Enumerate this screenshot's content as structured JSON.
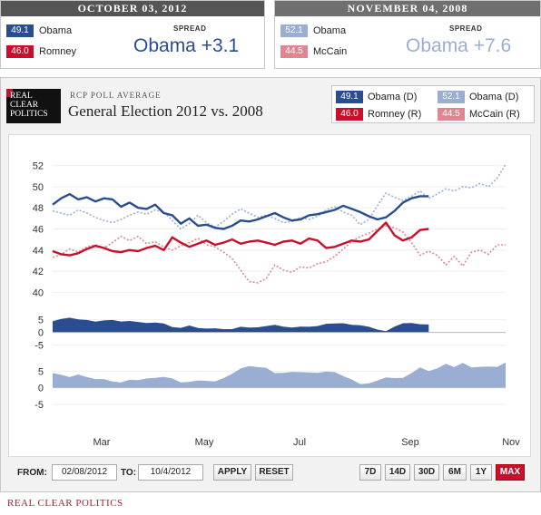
{
  "summary": {
    "current": {
      "date": "OCTOBER 03, 2012",
      "rows": [
        {
          "value": "49.1",
          "name": "Obama",
          "color": "#2a4d8f"
        },
        {
          "value": "46.0",
          "name": "Romney",
          "color": "#c8102e"
        }
      ],
      "spread_label": "SPREAD",
      "spread": "Obama +3.1",
      "spread_color": "#2a4d8f"
    },
    "previous": {
      "date": "NOVEMBER 04, 2008",
      "rows": [
        {
          "value": "52.1",
          "name": "Obama",
          "color": "#9aaed3"
        },
        {
          "value": "44.5",
          "name": "McCain",
          "color": "#e08690"
        }
      ],
      "spread_label": "SPREAD",
      "spread": "Obama +7.6",
      "spread_color": "#9aaed3"
    }
  },
  "header": {
    "logo": [
      "REAL",
      "CLEAR",
      "POLITICS"
    ],
    "subtitle": "RCP POLL AVERAGE",
    "title": "General Election 2012 vs. 2008"
  },
  "legend": [
    {
      "value": "49.1",
      "label": "Obama (D)",
      "color": "#2a4d8f"
    },
    {
      "value": "52.1",
      "label": "Obama (D)",
      "color": "#9aaed3"
    },
    {
      "value": "46.0",
      "label": "Romney (R)",
      "color": "#c8102e"
    },
    {
      "value": "44.5",
      "label": "McCain (R)",
      "color": "#e08690"
    }
  ],
  "controls": {
    "from_label": "FROM:",
    "from_value": "02/08/2012",
    "to_label": "TO:",
    "to_value": "10/4/2012",
    "apply": "APPLY",
    "reset": "RESET",
    "ranges": [
      "7D",
      "14D",
      "30D",
      "6M",
      "1Y",
      "MAX"
    ],
    "active_range": "MAX"
  },
  "footer": "REAL CLEAR POLITICS",
  "chart_data": {
    "type": "line",
    "x_tick_labels": [
      "Mar",
      "May",
      "Jul",
      "Sep",
      "Nov"
    ],
    "main": {
      "yticks": [
        40,
        42,
        44,
        46,
        48,
        50,
        52
      ],
      "ylim": [
        39,
        53
      ],
      "series": [
        {
          "name": "Obama (D)",
          "color": "#2a4d8f",
          "style": "solid",
          "values": [
            48.3,
            48.9,
            49.3,
            48.8,
            49.0,
            48.6,
            48.9,
            48.8,
            48.1,
            48.5,
            48.0,
            47.9,
            48.3,
            47.5,
            47.3,
            46.5,
            47.0,
            46.3,
            46.4,
            46.1,
            46.0,
            46.3,
            46.8,
            46.7,
            46.9,
            47.2,
            47.5,
            47.1,
            46.8,
            46.9,
            47.3,
            47.4,
            47.6,
            47.8,
            48.2,
            47.9,
            47.6,
            47.2,
            46.9,
            47.1,
            47.7,
            48.5,
            48.9,
            49.1,
            49.1
          ]
        },
        {
          "name": "Romney (R)",
          "color": "#c8102e",
          "style": "solid",
          "values": [
            43.9,
            43.6,
            43.5,
            43.7,
            44.1,
            44.4,
            44.2,
            43.9,
            43.8,
            44.0,
            43.9,
            44.2,
            44.4,
            44.0,
            45.2,
            44.7,
            44.3,
            44.6,
            44.9,
            44.5,
            44.7,
            45.0,
            44.6,
            44.8,
            44.9,
            44.7,
            44.5,
            44.8,
            44.9,
            44.6,
            45.1,
            44.9,
            44.2,
            44.3,
            44.6,
            44.9,
            44.8,
            45.0,
            45.8,
            46.6,
            45.4,
            44.9,
            45.2,
            45.9,
            46.0
          ]
        },
        {
          "name": "Obama (D)",
          "color": "#9aaed3",
          "style": "dotted",
          "values": [
            47.7,
            47.5,
            47.3,
            47.8,
            47.5,
            47.1,
            46.8,
            46.6,
            46.9,
            47.3,
            47.6,
            47.4,
            47.8,
            47.6,
            46.8,
            46.0,
            46.5,
            47.3,
            46.6,
            46.2,
            46.7,
            47.4,
            47.9,
            47.5,
            47.1,
            47.3,
            47.0,
            46.6,
            46.7,
            47.1,
            46.9,
            47.2,
            47.8,
            48.1,
            47.6,
            47.3,
            46.4,
            46.9,
            48.2,
            49.4,
            49.0,
            48.7,
            49.1,
            49.6,
            48.9,
            49.3,
            49.8,
            49.6,
            50.0,
            49.9,
            50.3,
            50.0,
            50.8,
            52.1
          ]
        },
        {
          "name": "McCain (R)",
          "color": "#e08690",
          "style": "dotted",
          "values": [
            43.3,
            43.6,
            44.1,
            43.8,
            44.3,
            44.5,
            44.2,
            44.7,
            45.3,
            44.9,
            45.3,
            44.6,
            44.8,
            44.3,
            44.0,
            44.4,
            44.7,
            45.1,
            44.5,
            44.3,
            43.8,
            43.2,
            42.1,
            41.0,
            40.9,
            41.3,
            42.6,
            42.1,
            41.9,
            42.4,
            42.3,
            42.7,
            42.9,
            43.4,
            44.1,
            44.8,
            45.3,
            45.6,
            46.0,
            46.3,
            46.1,
            45.7,
            44.7,
            43.5,
            43.9,
            43.5,
            42.6,
            43.4,
            42.5,
            43.8,
            44.0,
            43.6,
            44.5,
            44.5
          ]
        }
      ]
    },
    "spread_2012": {
      "yticks": [
        5,
        0,
        -5
      ],
      "ylim": [
        -8,
        7
      ],
      "values": [
        4.4,
        5.3,
        5.8,
        5.1,
        4.9,
        4.2,
        4.7,
        4.9,
        4.3,
        4.5,
        4.1,
        3.7,
        3.9,
        3.5,
        2.1,
        1.8,
        2.7,
        1.7,
        1.5,
        1.6,
        1.3,
        1.3,
        2.2,
        1.9,
        2.0,
        2.5,
        3.0,
        2.3,
        1.9,
        2.3,
        2.2,
        2.5,
        3.4,
        3.5,
        3.6,
        3.0,
        2.8,
        2.2,
        1.1,
        0.5,
        2.3,
        3.6,
        3.7,
        3.2,
        3.1
      ]
    },
    "spread_2008": {
      "yticks": [
        5,
        0,
        -5
      ],
      "ylim": [
        -8,
        7
      ],
      "values": [
        4.4,
        3.9,
        3.2,
        4.0,
        3.2,
        2.6,
        2.6,
        1.9,
        1.6,
        2.4,
        2.3,
        2.8,
        3.0,
        3.3,
        2.8,
        1.6,
        1.8,
        2.2,
        2.1,
        1.9,
        2.9,
        4.2,
        5.8,
        6.5,
        6.2,
        6.0,
        4.4,
        4.5,
        4.8,
        4.7,
        4.6,
        4.5,
        4.9,
        4.7,
        3.5,
        2.5,
        1.1,
        1.3,
        2.2,
        3.1,
        2.9,
        3.0,
        4.4,
        6.1,
        5.0,
        5.8,
        7.2,
        6.2,
        7.5,
        6.1,
        6.3,
        6.4,
        6.3,
        7.6
      ]
    }
  }
}
